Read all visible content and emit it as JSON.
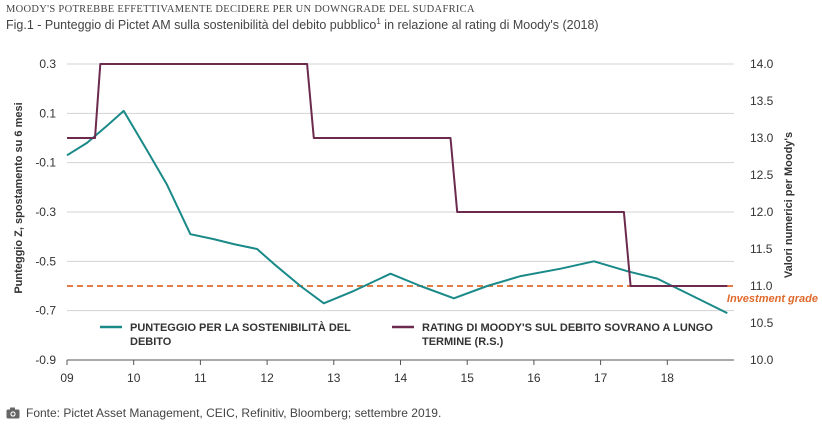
{
  "header": {
    "kicker": "MOODY'S POTREBBE EFFETTIVAMENTE DECIDERE PER UN DOWNGRADE DEL SUDAFRICA",
    "title_main": "Fig.1 - Punteggio di Pictet AM sulla sostenibilità del debito pubblico",
    "title_sup": "1",
    "title_tail": " in relazione al rating di Moody's (2018)"
  },
  "source": {
    "icon": "camera-icon",
    "text": "Fonte: Pictet Asset Management, CEIC, Refinitiv, Bloomberg; settembre 2019."
  },
  "chart_data": {
    "type": "line",
    "ylabel": "Punteggio Z, spostamento su 6 mesi",
    "y2label": "Valori numerici per Moody's",
    "xlim": [
      9,
      19
    ],
    "ylim": [
      -0.9,
      0.3
    ],
    "y2lim": [
      10.0,
      14.0
    ],
    "x_ticks": [
      "09",
      "10",
      "11",
      "12",
      "13",
      "14",
      "15",
      "16",
      "17",
      "18"
    ],
    "y_ticks": [
      "0.3",
      "0.1",
      "-0.1",
      "-0.3",
      "-0.5",
      "-0.7",
      "-0.9"
    ],
    "y2_ticks": [
      "14.0",
      "13.5",
      "13.0",
      "12.5",
      "12.0",
      "11.5",
      "11.0",
      "10.5",
      "10.0"
    ],
    "grid": "horizontal",
    "legend_position": "bottom-inside",
    "reference_line": {
      "y": -0.6,
      "label": "Investment grade",
      "color": "#e06a2c"
    },
    "series": [
      {
        "name": "PUNTEGGIO PER LA SOSTENIBILITÀ DEL DEBITO",
        "axis": "left",
        "color": "#1a8a89",
        "x": [
          9.0,
          9.3,
          9.6,
          9.85,
          10.2,
          10.5,
          10.85,
          11.2,
          11.5,
          11.85,
          12.1,
          12.5,
          12.85,
          13.3,
          13.85,
          14.3,
          14.8,
          15.3,
          15.8,
          16.4,
          16.9,
          17.4,
          17.85,
          18.3,
          18.9
        ],
        "values": [
          -0.07,
          -0.02,
          0.05,
          0.11,
          -0.05,
          -0.19,
          -0.39,
          -0.41,
          -0.43,
          -0.45,
          -0.51,
          -0.6,
          -0.67,
          -0.62,
          -0.55,
          -0.6,
          -0.65,
          -0.6,
          -0.56,
          -0.53,
          -0.5,
          -0.54,
          -0.57,
          -0.63,
          -0.71
        ]
      },
      {
        "name": "RATING DI MOODY'S SUL DEBITO SOVRANO A LUNGO TERMINE (R.S.)",
        "axis": "right",
        "color": "#6b2a4e",
        "x": [
          9.0,
          9.42,
          9.5,
          12.6,
          12.7,
          14.75,
          14.85,
          17.35,
          17.45,
          18.9
        ],
        "values": [
          13.0,
          13.0,
          14.0,
          14.0,
          13.0,
          13.0,
          12.0,
          12.0,
          11.0,
          11.0
        ]
      }
    ]
  }
}
